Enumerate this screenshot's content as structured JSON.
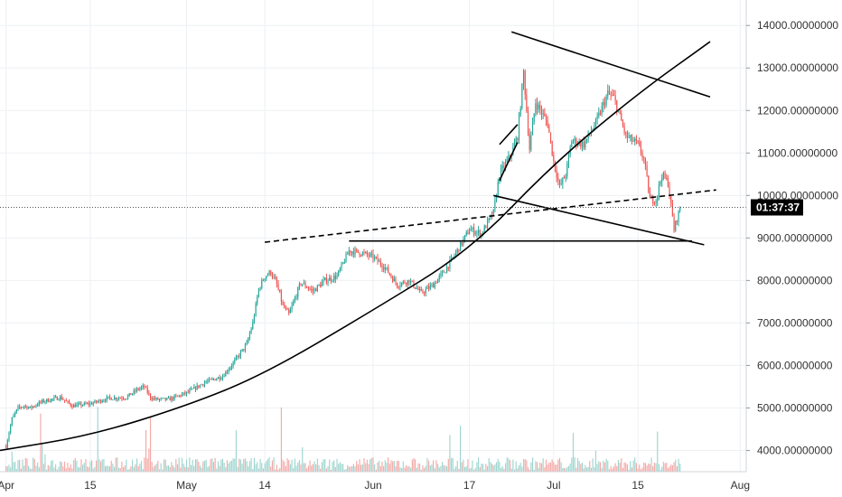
{
  "chart_data": {
    "type": "candlestick",
    "x_axis": {
      "type": "date",
      "ticks": [
        {
          "label": "Apr",
          "date": "2019-04-01"
        },
        {
          "label": "15",
          "date": "2019-04-15"
        },
        {
          "label": "May",
          "date": "2019-05-01"
        },
        {
          "label": "14",
          "date": "2019-05-14"
        },
        {
          "label": "Jun",
          "date": "2019-06-01"
        },
        {
          "label": "17",
          "date": "2019-06-17"
        },
        {
          "label": "Jul",
          "date": "2019-07-01"
        },
        {
          "label": "15",
          "date": "2019-07-15"
        },
        {
          "label": "Aug",
          "date": "2019-08-01"
        }
      ],
      "range": [
        "2019-03-31",
        "2019-08-02"
      ]
    },
    "y_axis": {
      "position": "right",
      "range": [
        3500,
        14600
      ],
      "ticks": [
        {
          "label": "4000.00000000",
          "value": 4000
        },
        {
          "label": "5000.00000000",
          "value": 5000
        },
        {
          "label": "6000.00000000",
          "value": 6000
        },
        {
          "label": "7000.00000000",
          "value": 7000
        },
        {
          "label": "8000.00000000",
          "value": 8000
        },
        {
          "label": "9000.00000000",
          "value": 9000
        },
        {
          "label": "10000.00000000",
          "value": 10000
        },
        {
          "label": "11000.00000000",
          "value": 11000
        },
        {
          "label": "12000.00000000",
          "value": 12000
        },
        {
          "label": "13000.00000000",
          "value": 13000
        },
        {
          "label": "14000.00000000",
          "value": 14000
        }
      ]
    },
    "grid": true,
    "current_price": {
      "value": 9720,
      "countdown_label": "01:37:37"
    },
    "colors": {
      "up": "#26a69a",
      "down": "#ef5350",
      "volume_up": "#9fd6cf",
      "volume_down": "#f4a9a7",
      "grid": "#eef0f3",
      "axis_text": "#333333",
      "drawing": "#000000",
      "badge_bg": "#000000"
    },
    "price_path": [
      [
        "2019-04-01",
        4100
      ],
      [
        "2019-04-02",
        4750
      ],
      [
        "2019-04-03",
        5000
      ],
      [
        "2019-04-04",
        5050
      ],
      [
        "2019-04-05",
        5000
      ],
      [
        "2019-04-07",
        5150
      ],
      [
        "2019-04-10",
        5250
      ],
      [
        "2019-04-12",
        5050
      ],
      [
        "2019-04-15",
        5100
      ],
      [
        "2019-04-18",
        5230
      ],
      [
        "2019-04-21",
        5250
      ],
      [
        "2019-04-23",
        5450
      ],
      [
        "2019-04-24",
        5500
      ],
      [
        "2019-04-25",
        5250
      ],
      [
        "2019-04-26",
        5200
      ],
      [
        "2019-04-28",
        5200
      ],
      [
        "2019-05-01",
        5350
      ],
      [
        "2019-05-04",
        5600
      ],
      [
        "2019-05-07",
        5750
      ],
      [
        "2019-05-09",
        6100
      ],
      [
        "2019-05-11",
        6500
      ],
      [
        "2019-05-12",
        7000
      ],
      [
        "2019-05-13",
        7800
      ],
      [
        "2019-05-14",
        8100
      ],
      [
        "2019-05-15",
        8200
      ],
      [
        "2019-05-16",
        7900
      ],
      [
        "2019-05-17",
        7400
      ],
      [
        "2019-05-18",
        7200
      ],
      [
        "2019-05-20",
        7950
      ],
      [
        "2019-05-22",
        7750
      ],
      [
        "2019-05-24",
        8000
      ],
      [
        "2019-05-26",
        8100
      ],
      [
        "2019-05-28",
        8700
      ],
      [
        "2019-05-30",
        8650
      ],
      [
        "2019-06-01",
        8550
      ],
      [
        "2019-06-03",
        8300
      ],
      [
        "2019-06-05",
        7900
      ],
      [
        "2019-06-07",
        8000
      ],
      [
        "2019-06-09",
        7700
      ],
      [
        "2019-06-11",
        7900
      ],
      [
        "2019-06-13",
        8250
      ],
      [
        "2019-06-15",
        8700
      ],
      [
        "2019-06-17",
        9200
      ],
      [
        "2019-06-19",
        9100
      ],
      [
        "2019-06-21",
        9600
      ],
      [
        "2019-06-22",
        10500
      ],
      [
        "2019-06-24",
        11000
      ],
      [
        "2019-06-25",
        11400
      ],
      [
        "2019-06-26",
        12900
      ],
      [
        "2019-06-27",
        11100
      ],
      [
        "2019-06-28",
        12200
      ],
      [
        "2019-06-30",
        11700
      ],
      [
        "2019-07-01",
        10800
      ],
      [
        "2019-07-02",
        10200
      ],
      [
        "2019-07-03",
        10500
      ],
      [
        "2019-07-04",
        11300
      ],
      [
        "2019-07-06",
        11200
      ],
      [
        "2019-07-08",
        11700
      ],
      [
        "2019-07-10",
        12400
      ],
      [
        "2019-07-11",
        12300
      ],
      [
        "2019-07-13",
        11400
      ],
      [
        "2019-07-15",
        11200
      ],
      [
        "2019-07-16",
        10850
      ],
      [
        "2019-07-17",
        9900
      ],
      [
        "2019-07-18",
        9900
      ],
      [
        "2019-07-19",
        10500
      ],
      [
        "2019-07-20",
        10300
      ],
      [
        "2019-07-21",
        9200
      ],
      [
        "2019-07-22",
        9720
      ]
    ],
    "drawings": [
      {
        "kind": "curve",
        "style": "solid",
        "points": [
          [
            "2019-03-31",
            4000
          ],
          [
            "2019-04-15",
            4350
          ],
          [
            "2019-05-01",
            5050
          ],
          [
            "2019-05-14",
            5800
          ],
          [
            "2019-06-01",
            7300
          ],
          [
            "2019-06-17",
            8700
          ],
          [
            "2019-07-01",
            10750
          ],
          [
            "2019-07-15",
            12400
          ],
          [
            "2019-07-27",
            13620
          ]
        ]
      },
      {
        "kind": "line",
        "style": "solid",
        "points": [
          [
            "2019-06-24",
            13850
          ],
          [
            "2019-07-27",
            12320
          ]
        ]
      },
      {
        "kind": "line",
        "style": "solid",
        "points": [
          [
            "2019-06-21",
            10000
          ],
          [
            "2019-07-26",
            8840
          ]
        ]
      },
      {
        "kind": "line",
        "style": "solid",
        "points": [
          [
            "2019-05-28",
            8930
          ],
          [
            "2019-07-24",
            8930
          ]
        ]
      },
      {
        "kind": "line",
        "style": "dashed",
        "points": [
          [
            "2019-05-14",
            8900
          ],
          [
            "2019-07-28",
            10130
          ]
        ]
      },
      {
        "kind": "line",
        "style": "solid",
        "points": [
          [
            "2019-06-22",
            11200
          ],
          [
            "2019-06-25",
            11670
          ]
        ]
      },
      {
        "kind": "line",
        "style": "solid",
        "points": [
          [
            "2019-06-22",
            10350
          ],
          [
            "2019-06-25",
            11250
          ]
        ]
      }
    ]
  }
}
